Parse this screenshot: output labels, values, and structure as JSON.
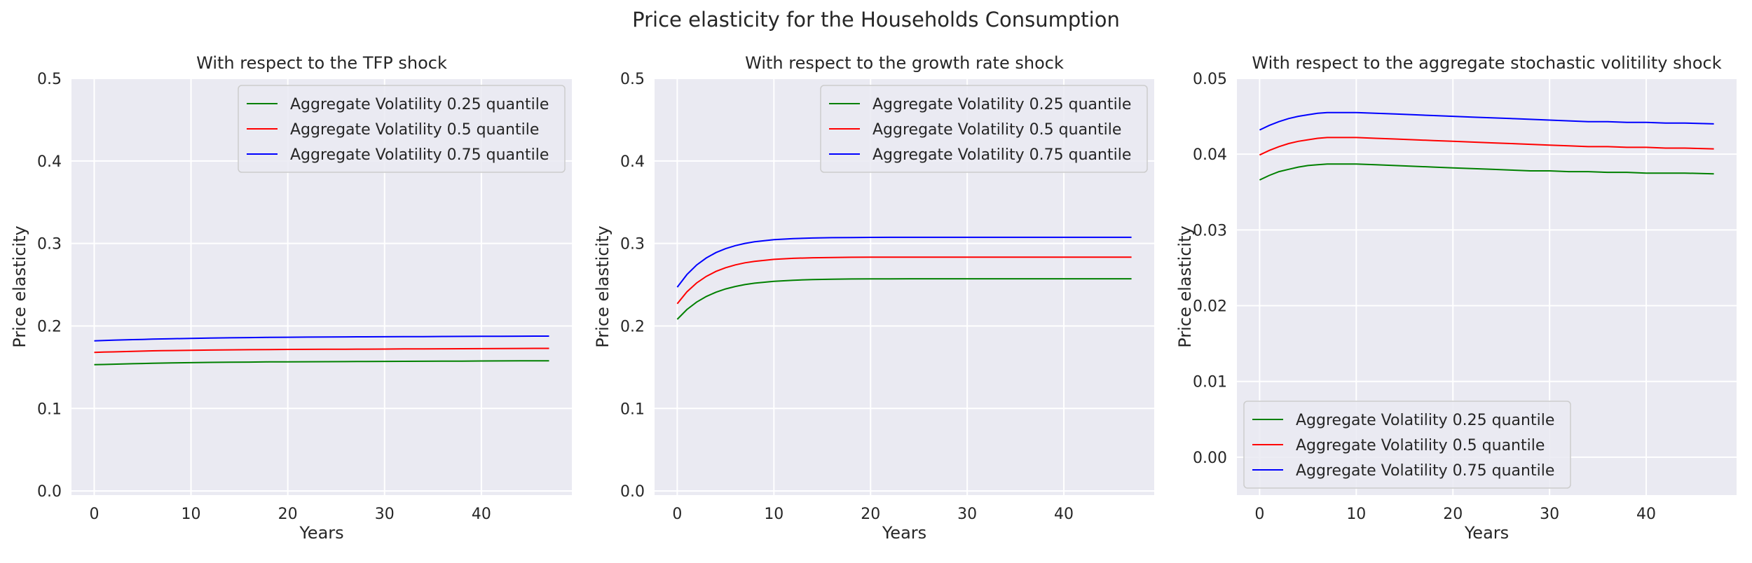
{
  "figure": {
    "suptitle": "Price elasticity for the Households Consumption"
  },
  "chart_data": [
    {
      "type": "line",
      "title": "With respect to the TFP shock",
      "xlabel": "Years",
      "ylabel": "Price elasticity",
      "xlim": [
        -2.35,
        49.35
      ],
      "ylim": [
        -0.005,
        0.5
      ],
      "xticks": [
        "0",
        "10",
        "20",
        "30",
        "40"
      ],
      "yticks": [
        "0.0",
        "0.1",
        "0.2",
        "0.3",
        "0.4",
        "0.5"
      ],
      "grid": true,
      "legend_position": "upper right",
      "x": [
        0,
        1,
        2,
        3,
        4,
        5,
        6,
        7,
        8,
        10,
        12,
        14,
        16,
        18,
        20,
        22,
        24,
        26,
        28,
        30,
        32,
        34,
        36,
        38,
        40,
        42,
        44,
        47
      ],
      "series": [
        {
          "name": "Aggregate Volatility 0.25 quantile",
          "color": "#008000",
          "values": [
            0.153,
            0.1533,
            0.1536,
            0.1539,
            0.1542,
            0.1545,
            0.1548,
            0.155,
            0.1552,
            0.1555,
            0.1558,
            0.156,
            0.1562,
            0.1564,
            0.1565,
            0.1566,
            0.1567,
            0.1568,
            0.1569,
            0.157,
            0.1571,
            0.1572,
            0.1573,
            0.1574,
            0.1575,
            0.1576,
            0.1577,
            0.1578
          ]
        },
        {
          "name": "Aggregate Volatility 0.5 quantile",
          "color": "#ff0000",
          "values": [
            0.168,
            0.1683,
            0.1686,
            0.1689,
            0.1692,
            0.1695,
            0.1698,
            0.17,
            0.1702,
            0.1705,
            0.1708,
            0.171,
            0.1712,
            0.1714,
            0.1715,
            0.1716,
            0.1717,
            0.1718,
            0.1719,
            0.172,
            0.1721,
            0.1722,
            0.1723,
            0.1724,
            0.1725,
            0.1726,
            0.1727,
            0.1728
          ]
        },
        {
          "name": "Aggregate Volatility 0.75 quantile",
          "color": "#0000ff",
          "values": [
            0.182,
            0.1824,
            0.1828,
            0.1831,
            0.1834,
            0.1837,
            0.184,
            0.1843,
            0.1845,
            0.1849,
            0.1853,
            0.1856,
            0.1859,
            0.1861,
            0.1863,
            0.1865,
            0.1866,
            0.1867,
            0.1868,
            0.1869,
            0.187,
            0.1871,
            0.1872,
            0.1873,
            0.1874,
            0.1875,
            0.1876,
            0.1877
          ]
        }
      ]
    },
    {
      "type": "line",
      "title": "With respect to the growth rate shock",
      "xlabel": "Years",
      "ylabel": "Price elasticity",
      "xlim": [
        -2.35,
        49.35
      ],
      "ylim": [
        -0.005,
        0.5
      ],
      "xticks": [
        "0",
        "10",
        "20",
        "30",
        "40"
      ],
      "yticks": [
        "0.0",
        "0.1",
        "0.2",
        "0.3",
        "0.4",
        "0.5"
      ],
      "grid": true,
      "legend_position": "upper right",
      "x": [
        0,
        1,
        2,
        3,
        4,
        5,
        6,
        7,
        8,
        10,
        12,
        14,
        16,
        18,
        20,
        22,
        24,
        26,
        28,
        30,
        32,
        34,
        36,
        38,
        40,
        42,
        44,
        47
      ],
      "series": [
        {
          "name": "Aggregate Volatility 0.25 quantile",
          "color": "#008000",
          "values": [
            0.208,
            0.2199,
            0.2289,
            0.2357,
            0.2409,
            0.2449,
            0.2478,
            0.2501,
            0.2518,
            0.2541,
            0.2554,
            0.2562,
            0.2566,
            0.2569,
            0.257,
            0.2571,
            0.2572,
            0.2572,
            0.2572,
            0.2572,
            0.2572,
            0.2572,
            0.2572,
            0.2572,
            0.2572,
            0.2572,
            0.2572,
            0.2572
          ]
        },
        {
          "name": "Aggregate Volatility 0.5 quantile",
          "color": "#ff0000",
          "values": [
            0.227,
            0.2414,
            0.2521,
            0.2601,
            0.2661,
            0.2706,
            0.274,
            0.2765,
            0.2783,
            0.2807,
            0.282,
            0.2826,
            0.283,
            0.2832,
            0.2833,
            0.2834,
            0.2834,
            0.2834,
            0.2834,
            0.2834,
            0.2834,
            0.2834,
            0.2834,
            0.2834,
            0.2834,
            0.2834,
            0.2834,
            0.2834
          ]
        },
        {
          "name": "Aggregate Volatility 0.75 quantile",
          "color": "#0000ff",
          "values": [
            0.247,
            0.2623,
            0.2738,
            0.2824,
            0.2889,
            0.2937,
            0.2973,
            0.3,
            0.302,
            0.3045,
            0.3059,
            0.3066,
            0.307,
            0.3072,
            0.3073,
            0.3074,
            0.3074,
            0.3074,
            0.3074,
            0.3074,
            0.3074,
            0.3074,
            0.3074,
            0.3074,
            0.3074,
            0.3074,
            0.3074,
            0.3074
          ]
        }
      ]
    },
    {
      "type": "line",
      "title": "With respect to the aggregate stochastic volitility shock",
      "xlabel": "Years",
      "ylabel": "Price elasticity",
      "xlim": [
        -2.35,
        49.35
      ],
      "ylim": [
        -0.005,
        0.05
      ],
      "xticks": [
        "0",
        "10",
        "20",
        "30",
        "40"
      ],
      "yticks": [
        "0.00",
        "0.01",
        "0.02",
        "0.03",
        "0.04",
        "0.05"
      ],
      "grid": true,
      "legend_position": "lower left",
      "x": [
        0,
        1,
        2,
        3,
        4,
        5,
        6,
        7,
        8,
        10,
        12,
        14,
        16,
        18,
        20,
        22,
        24,
        26,
        28,
        30,
        32,
        34,
        36,
        38,
        40,
        42,
        44,
        47
      ],
      "series": [
        {
          "name": "Aggregate Volatility 0.25 quantile",
          "color": "#008000",
          "values": [
            0.0366,
            0.0372,
            0.0377,
            0.038,
            0.0383,
            0.0385,
            0.0386,
            0.0387,
            0.0387,
            0.0387,
            0.0386,
            0.0385,
            0.0384,
            0.0383,
            0.0382,
            0.0381,
            0.038,
            0.0379,
            0.0378,
            0.0378,
            0.0377,
            0.0377,
            0.0376,
            0.0376,
            0.0375,
            0.0375,
            0.0375,
            0.0374
          ]
        },
        {
          "name": "Aggregate Volatility 0.5 quantile",
          "color": "#ff0000",
          "values": [
            0.0399,
            0.0405,
            0.041,
            0.0414,
            0.0417,
            0.0419,
            0.0421,
            0.0422,
            0.0422,
            0.0422,
            0.0421,
            0.042,
            0.0419,
            0.0418,
            0.0417,
            0.0416,
            0.0415,
            0.0414,
            0.0413,
            0.0412,
            0.0411,
            0.041,
            0.041,
            0.0409,
            0.0409,
            0.0408,
            0.0408,
            0.0407
          ]
        },
        {
          "name": "Aggregate Volatility 0.75 quantile",
          "color": "#0000ff",
          "values": [
            0.0432,
            0.0438,
            0.0443,
            0.0447,
            0.045,
            0.0452,
            0.0454,
            0.0455,
            0.0455,
            0.0455,
            0.0454,
            0.0453,
            0.0452,
            0.0451,
            0.045,
            0.0449,
            0.0448,
            0.0447,
            0.0446,
            0.0445,
            0.0444,
            0.0443,
            0.0443,
            0.0442,
            0.0442,
            0.0441,
            0.0441,
            0.044
          ]
        }
      ]
    }
  ]
}
